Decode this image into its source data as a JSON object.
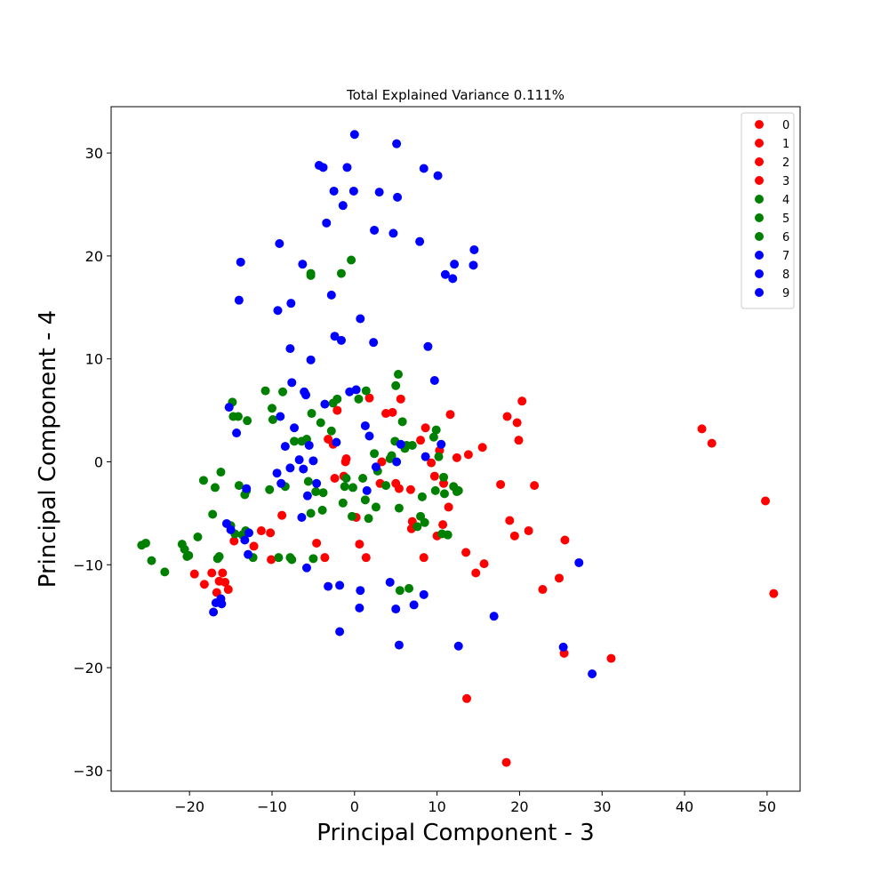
{
  "chart_data": {
    "type": "scatter",
    "title": "Total Explained Variance 0.111%",
    "xlabel": "Principal Component - 3",
    "ylabel": "Principal Component - 4",
    "xlim": [
      -29.5,
      54
    ],
    "ylim": [
      -32,
      34.5
    ],
    "xticks": [
      -20,
      -10,
      0,
      10,
      20,
      30,
      40,
      50
    ],
    "yticks": [
      -30,
      -20,
      -10,
      0,
      10,
      20,
      30
    ],
    "grid": false,
    "legend_position": "top-right",
    "colors": {
      "red": "#ff0000",
      "green": "#008000",
      "blue": "#0000ff"
    },
    "series": [
      {
        "name": "0",
        "color": "#ff0000",
        "points": []
      },
      {
        "name": "1",
        "color": "#ff0000",
        "points": []
      },
      {
        "name": "2",
        "color": "#ff0000",
        "points": []
      },
      {
        "name": "3",
        "color": "#ff0000",
        "points": [
          [
            -19.4,
            -10.9
          ],
          [
            -18.2,
            -11.9
          ],
          [
            -17.3,
            -10.8
          ],
          [
            -16.7,
            -12.7
          ],
          [
            -16.4,
            -11.6
          ],
          [
            -16.0,
            -10.8
          ],
          [
            -15.7,
            -11.7
          ],
          [
            -15.3,
            -12.4
          ],
          [
            -14.6,
            -7.7
          ],
          [
            -12.2,
            -8.2
          ],
          [
            -11.3,
            -6.7
          ],
          [
            -10.2,
            -6.9
          ],
          [
            -10.1,
            -9.5
          ],
          [
            -8.8,
            -5.2
          ],
          [
            -5.9,
            2.1
          ],
          [
            -4.6,
            -7.9
          ],
          [
            -3.6,
            -9.3
          ],
          [
            -3.2,
            2.2
          ],
          [
            -2.6,
            1.7
          ],
          [
            -2.4,
            -1.6
          ],
          [
            -2.1,
            5.0
          ],
          [
            -1.3,
            -1.4
          ],
          [
            -1.1,
            0.0
          ],
          [
            -1.0,
            0.3
          ],
          [
            0.2,
            -5.4
          ],
          [
            0.6,
            -8.0
          ],
          [
            1.4,
            -9.3
          ],
          [
            1.8,
            6.2
          ],
          [
            3.1,
            -2.1
          ],
          [
            3.3,
            0.0
          ],
          [
            3.8,
            4.7
          ],
          [
            4.6,
            4.8
          ],
          [
            5.0,
            -2.1
          ],
          [
            5.4,
            -2.6
          ],
          [
            5.6,
            6.1
          ],
          [
            6.8,
            -2.7
          ],
          [
            6.9,
            -6.5
          ],
          [
            7.0,
            -5.8
          ],
          [
            8.0,
            2.1
          ],
          [
            8.4,
            -9.3
          ],
          [
            8.6,
            3.3
          ],
          [
            9.3,
            -0.1
          ],
          [
            9.7,
            -1.4
          ],
          [
            10.0,
            -7.2
          ],
          [
            10.3,
            1.1
          ],
          [
            10.7,
            -6.1
          ],
          [
            10.8,
            -2.1
          ],
          [
            11.4,
            -4.4
          ],
          [
            11.6,
            4.6
          ],
          [
            12.4,
            0.4
          ],
          [
            13.5,
            -8.8
          ],
          [
            13.8,
            0.7
          ],
          [
            14.7,
            -10.8
          ],
          [
            15.5,
            1.4
          ],
          [
            15.7,
            -9.9
          ],
          [
            17.7,
            -2.2
          ],
          [
            18.5,
            4.4
          ],
          [
            18.8,
            -5.7
          ],
          [
            19.4,
            -7.2
          ],
          [
            19.7,
            3.8
          ],
          [
            19.9,
            2.1
          ],
          [
            20.3,
            5.9
          ],
          [
            21.1,
            -6.7
          ],
          [
            21.8,
            -2.3
          ],
          [
            22.8,
            -12.4
          ],
          [
            24.8,
            -11.3
          ],
          [
            25.4,
            -18.6
          ],
          [
            25.5,
            -7.6
          ],
          [
            31.1,
            -19.1
          ],
          [
            13.6,
            -23.0
          ],
          [
            18.4,
            -29.2
          ],
          [
            42.1,
            3.2
          ],
          [
            43.3,
            1.8
          ],
          [
            49.8,
            -3.8
          ],
          [
            50.8,
            -12.8
          ]
        ]
      },
      {
        "name": "4",
        "color": "#008000",
        "points": []
      },
      {
        "name": "5",
        "color": "#008000",
        "points": []
      },
      {
        "name": "6",
        "color": "#008000",
        "points": [
          [
            -25.8,
            -8.1
          ],
          [
            -25.3,
            -7.9
          ],
          [
            -24.6,
            -9.6
          ],
          [
            -23.0,
            -10.7
          ],
          [
            -20.9,
            -8.0
          ],
          [
            -20.6,
            -8.5
          ],
          [
            -20.3,
            -9.2
          ],
          [
            -20.1,
            -9.1
          ],
          [
            -19.0,
            -7.3
          ],
          [
            -18.3,
            -1.8
          ],
          [
            -17.2,
            -5.1
          ],
          [
            -16.9,
            -2.5
          ],
          [
            -16.6,
            -9.4
          ],
          [
            -16.4,
            -9.2
          ],
          [
            -16.2,
            -1.0
          ],
          [
            -15.0,
            -6.2
          ],
          [
            -14.8,
            5.8
          ],
          [
            -14.7,
            4.4
          ],
          [
            -14.5,
            -7.0
          ],
          [
            -14.1,
            4.4
          ],
          [
            -14.0,
            -2.3
          ],
          [
            -13.6,
            -7.1
          ],
          [
            -13.3,
            -3.2
          ],
          [
            -13.2,
            -6.7
          ],
          [
            -13.1,
            -2.8
          ],
          [
            -13.0,
            4.0
          ],
          [
            -12.3,
            -9.3
          ],
          [
            -10.8,
            6.9
          ],
          [
            -10.3,
            -2.7
          ],
          [
            -10.0,
            5.2
          ],
          [
            -9.9,
            4.1
          ],
          [
            -9.2,
            -9.3
          ],
          [
            -8.7,
            6.8
          ],
          [
            -7.8,
            -9.3
          ],
          [
            -7.6,
            -9.5
          ],
          [
            -7.3,
            2.0
          ],
          [
            -6.4,
            2.0
          ],
          [
            -5.8,
            2.2
          ],
          [
            -5.3,
            18.1
          ],
          [
            -5.3,
            18.3
          ],
          [
            -5.3,
            -5.0
          ],
          [
            -5.6,
            -1.9
          ],
          [
            -5.2,
            4.7
          ],
          [
            -5.0,
            -9.4
          ],
          [
            -4.1,
            3.8
          ],
          [
            -3.9,
            -4.7
          ],
          [
            -3.8,
            -3.0
          ],
          [
            -2.8,
            3.0
          ],
          [
            -2.6,
            5.7
          ],
          [
            -2.1,
            6.1
          ],
          [
            -1.6,
            18.3
          ],
          [
            -1.4,
            -4.0
          ],
          [
            -1.2,
            -2.4
          ],
          [
            -1.0,
            -1.6
          ],
          [
            -0.4,
            19.6
          ],
          [
            -0.3,
            -5.3
          ],
          [
            -0.2,
            -2.5
          ],
          [
            0.5,
            6.1
          ],
          [
            1.0,
            -1.6
          ],
          [
            1.3,
            -3.7
          ],
          [
            1.4,
            6.9
          ],
          [
            1.7,
            -5.5
          ],
          [
            2.4,
            0.8
          ],
          [
            2.6,
            -4.4
          ],
          [
            2.8,
            -0.9
          ],
          [
            3.8,
            -2.3
          ],
          [
            4.3,
            0.3
          ],
          [
            4.5,
            0.6
          ],
          [
            4.9,
            2.0
          ],
          [
            5.0,
            7.4
          ],
          [
            5.3,
            8.5
          ],
          [
            5.4,
            -4.5
          ],
          [
            5.5,
            -12.5
          ],
          [
            5.8,
            3.9
          ],
          [
            6.3,
            1.6
          ],
          [
            6.6,
            -12.3
          ],
          [
            7.6,
            -6.3
          ],
          [
            8.0,
            -5.3
          ],
          [
            8.2,
            -3.4
          ],
          [
            8.5,
            -5.9
          ],
          [
            9.6,
            2.4
          ],
          [
            9.8,
            -2.8
          ],
          [
            9.9,
            3.1
          ],
          [
            10.2,
            0.5
          ],
          [
            10.6,
            -7.0
          ],
          [
            10.8,
            -1.5
          ],
          [
            10.9,
            -3.1
          ],
          [
            11.3,
            -7.1
          ],
          [
            12.0,
            -2.4
          ],
          [
            12.4,
            -2.9
          ],
          [
            12.6,
            -2.8
          ],
          [
            6.1,
            1.3
          ],
          [
            7.0,
            1.6
          ],
          [
            -8.4,
            -2.4
          ],
          [
            -4.7,
            -2.9
          ]
        ]
      },
      {
        "name": "7",
        "color": "#0000ff",
        "points": []
      },
      {
        "name": "8",
        "color": "#0000ff",
        "points": []
      },
      {
        "name": "9",
        "color": "#0000ff",
        "points": [
          [
            -17.1,
            -14.6
          ],
          [
            -16.8,
            -13.7
          ],
          [
            -16.2,
            -13.3
          ],
          [
            -16.1,
            -13.8
          ],
          [
            -15.5,
            -6.0
          ],
          [
            -15.2,
            5.3
          ],
          [
            -15.0,
            -6.6
          ],
          [
            -14.3,
            2.8
          ],
          [
            -14.0,
            15.7
          ],
          [
            -13.8,
            19.4
          ],
          [
            -13.3,
            -7.6
          ],
          [
            -13.1,
            -2.6
          ],
          [
            -12.8,
            -6.9
          ],
          [
            -12.9,
            -9.0
          ],
          [
            -9.4,
            -1.1
          ],
          [
            -9.3,
            14.7
          ],
          [
            -9.1,
            21.2
          ],
          [
            -9.0,
            4.4
          ],
          [
            -8.9,
            -2.1
          ],
          [
            -8.4,
            1.5
          ],
          [
            -7.8,
            11.0
          ],
          [
            -7.8,
            -0.6
          ],
          [
            -7.7,
            15.4
          ],
          [
            -7.6,
            7.7
          ],
          [
            -7.3,
            3.3
          ],
          [
            -6.7,
            0.2
          ],
          [
            -6.4,
            -5.4
          ],
          [
            -6.3,
            19.2
          ],
          [
            -6.2,
            -0.7
          ],
          [
            -6.1,
            6.8
          ],
          [
            -5.9,
            6.5
          ],
          [
            -5.7,
            -3.3
          ],
          [
            -5.8,
            -10.3
          ],
          [
            -5.5,
            1.6
          ],
          [
            -5.3,
            9.9
          ],
          [
            -5.0,
            0.1
          ],
          [
            -4.6,
            -2.1
          ],
          [
            -4.3,
            28.8
          ],
          [
            -3.8,
            28.6
          ],
          [
            -3.6,
            5.6
          ],
          [
            -3.4,
            23.2
          ],
          [
            -3.2,
            -12.1
          ],
          [
            -2.8,
            16.2
          ],
          [
            -2.4,
            12.2
          ],
          [
            -2.5,
            26.3
          ],
          [
            -2.2,
            1.9
          ],
          [
            -1.8,
            -12.0
          ],
          [
            -1.8,
            -16.5
          ],
          [
            -1.6,
            11.8
          ],
          [
            -1.4,
            24.9
          ],
          [
            -0.9,
            28.6
          ],
          [
            -0.6,
            6.8
          ],
          [
            -0.1,
            26.3
          ],
          [
            0.0,
            31.8
          ],
          [
            0.2,
            7.0
          ],
          [
            0.6,
            -14.2
          ],
          [
            0.7,
            -12.5
          ],
          [
            0.7,
            13.9
          ],
          [
            1.3,
            3.5
          ],
          [
            1.5,
            -2.8
          ],
          [
            1.8,
            2.5
          ],
          [
            2.3,
            11.6
          ],
          [
            2.4,
            22.5
          ],
          [
            2.6,
            -0.5
          ],
          [
            3.0,
            26.2
          ],
          [
            4.3,
            -11.7
          ],
          [
            4.7,
            22.2
          ],
          [
            5.0,
            -14.3
          ],
          [
            5.1,
            30.9
          ],
          [
            5.2,
            25.7
          ],
          [
            5.1,
            0.0
          ],
          [
            5.4,
            -17.8
          ],
          [
            5.6,
            1.7
          ],
          [
            7.2,
            -13.9
          ],
          [
            7.9,
            21.4
          ],
          [
            8.4,
            28.5
          ],
          [
            8.4,
            -12.9
          ],
          [
            8.6,
            0.5
          ],
          [
            8.9,
            11.2
          ],
          [
            9.7,
            7.9
          ],
          [
            10.1,
            27.8
          ],
          [
            10.5,
            1.7
          ],
          [
            11.0,
            18.2
          ],
          [
            11.9,
            17.8
          ],
          [
            12.1,
            19.2
          ],
          [
            12.6,
            -17.9
          ],
          [
            14.4,
            19.1
          ],
          [
            14.5,
            20.6
          ],
          [
            16.9,
            -15.0
          ],
          [
            25.3,
            -18.0
          ],
          [
            27.2,
            -9.8
          ],
          [
            28.8,
            -20.6
          ]
        ]
      }
    ]
  }
}
